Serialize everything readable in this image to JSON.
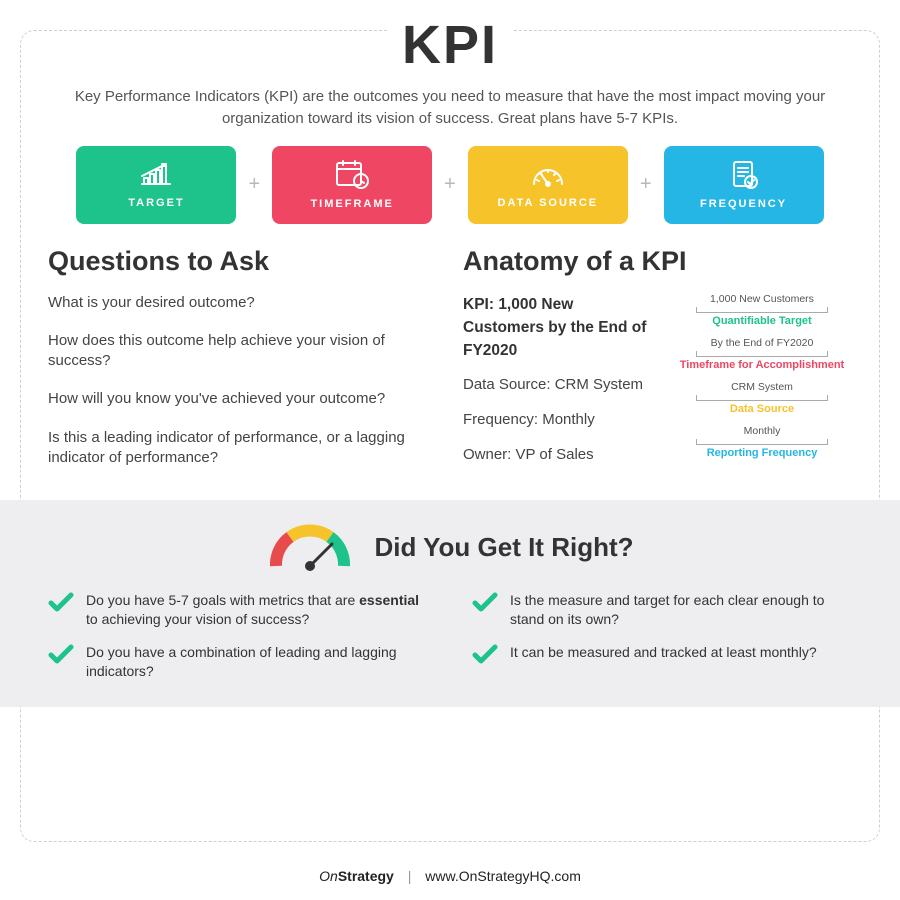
{
  "title": "KPI",
  "intro": "Key Performance Indicators (KPI) are the outcomes you need to measure that have the most impact moving your organization toward its vision of success. Great plans have 5-7 KPIs.",
  "pills": [
    {
      "label": "TARGET",
      "color": "#1ec28b",
      "icon": "target"
    },
    {
      "label": "TIMEFRAME",
      "color": "#ef4663",
      "icon": "calendar"
    },
    {
      "label": "DATA SOURCE",
      "color": "#f6c32b",
      "icon": "gauge"
    },
    {
      "label": "FREQUENCY",
      "color": "#25b6e6",
      "icon": "doc"
    }
  ],
  "questions_heading": "Questions to Ask",
  "questions": [
    "What is your desired outcome?",
    "How does this outcome help achieve your vision of success?",
    "How will you know you've achieved your outcome?",
    "Is this a leading indicator of performance, or a lagging indicator of performance?"
  ],
  "anatomy_heading": "Anatomy of a KPI",
  "kpi_example": {
    "headline_prefix": "KPI: ",
    "headline": "1,000 New Customers by the End of FY2020",
    "lines": [
      "Data Source: CRM System",
      "Frequency: Monthly",
      "Owner: VP of Sales"
    ]
  },
  "tags": [
    {
      "top": "1,000 New Customers",
      "label": "Quantifiable Target",
      "color": "#1ec28b"
    },
    {
      "top": "By the End of FY2020",
      "label": "Timeframe for Accomplishment",
      "color": "#ef4663"
    },
    {
      "top": "CRM System",
      "label": "Data Source",
      "color": "#f6c32b"
    },
    {
      "top": "Monthly",
      "label": "Reporting Frequency",
      "color": "#25b6e6"
    }
  ],
  "check": {
    "heading": "Did You Get It Right?",
    "gauge_colors": {
      "red": "#e84b4b",
      "yellow": "#f6c32b",
      "green": "#1ec28b",
      "needle": "#333333"
    },
    "check_color": "#1ec28b",
    "items": [
      "Do you have 5-7 goals with metrics that are <b>essential</b> to achieving your vision of success?",
      "Is the measure and target for each clear enough to stand on its own?",
      "Do you have a combination of leading and lagging indicators?",
      "It can be measured and tracked at least monthly?"
    ]
  },
  "footer": {
    "brand_on": "On",
    "brand_strategy": "Strategy",
    "url": "www.OnStrategyHQ.com"
  }
}
